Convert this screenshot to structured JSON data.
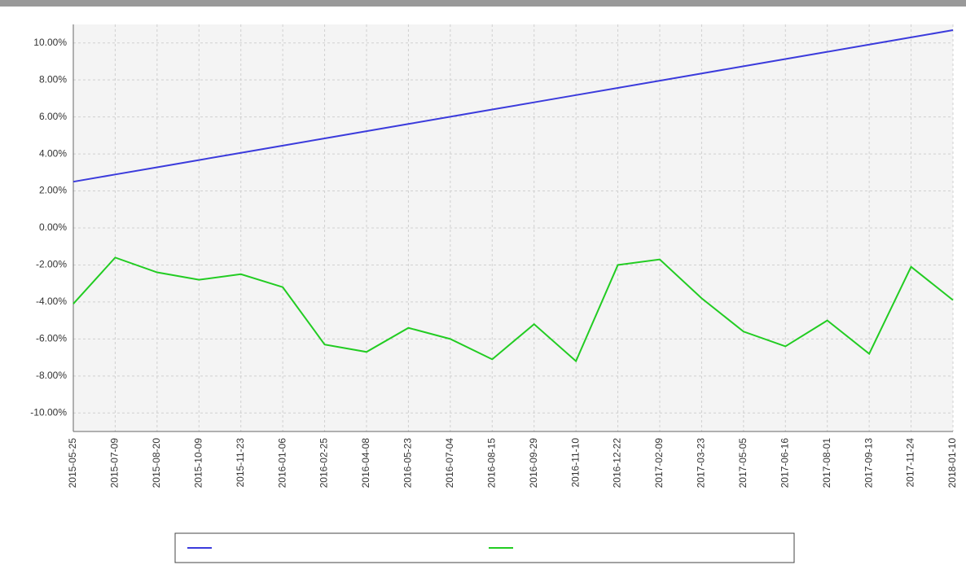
{
  "chart_data": {
    "type": "line",
    "categories": [
      "2015-05-25",
      "2015-07-09",
      "2015-08-20",
      "2015-10-09",
      "2015-11-23",
      "2016-01-06",
      "2016-02-25",
      "2016-04-08",
      "2016-05-23",
      "2016-07-04",
      "2016-08-15",
      "2016-09-29",
      "2016-11-10",
      "2016-12-22",
      "2017-02-09",
      "2017-03-23",
      "2017-05-05",
      "2017-06-16",
      "2017-08-01",
      "2017-09-13",
      "2017-11-24",
      "2018-01-10"
    ],
    "series": [
      {
        "color": "#3b3bdc",
        "values": [
          2.5,
          2.89,
          3.28,
          3.67,
          4.06,
          4.45,
          4.84,
          5.23,
          5.62,
          6.01,
          6.4,
          6.79,
          7.18,
          7.57,
          7.96,
          8.35,
          8.74,
          9.13,
          9.52,
          9.91,
          10.3,
          10.69
        ]
      },
      {
        "color": "#22cc22",
        "values": [
          -4.1,
          -1.6,
          -2.4,
          -2.8,
          -2.5,
          -3.2,
          -6.3,
          -6.7,
          -5.4,
          -6.0,
          -7.1,
          -5.2,
          -7.2,
          -2.0,
          -1.7,
          -3.8,
          -5.6,
          -6.4,
          -5.0,
          -6.8,
          -2.1,
          -3.9
        ]
      }
    ],
    "ylim": [
      -11,
      11
    ],
    "yticks": [
      {
        "value": -10,
        "label": "-10.00%"
      },
      {
        "value": -8,
        "label": "-8.00%"
      },
      {
        "value": -6,
        "label": "-6.00%"
      },
      {
        "value": -4,
        "label": "-4.00%"
      },
      {
        "value": -2,
        "label": "-2.00%"
      },
      {
        "value": 0,
        "label": "0.00%"
      },
      {
        "value": 2,
        "label": "2.00%"
      },
      {
        "value": 4,
        "label": "4.00%"
      },
      {
        "value": 6,
        "label": "6.00%"
      },
      {
        "value": 8,
        "label": "8.00%"
      },
      {
        "value": 10,
        "label": "10.00%"
      }
    ],
    "grid": true
  }
}
